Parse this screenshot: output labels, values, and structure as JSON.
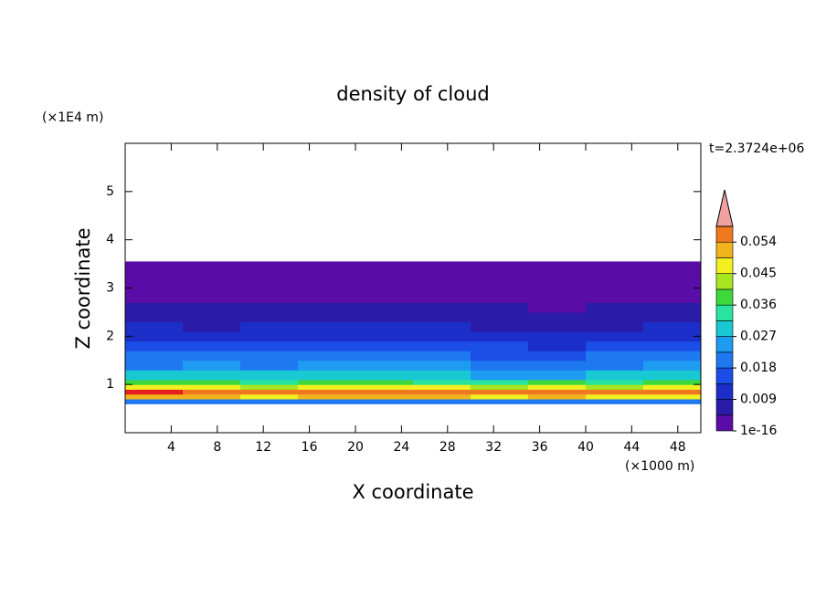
{
  "chart_data": {
    "type": "contour",
    "title": "density of cloud",
    "x_label": "X coordinate",
    "y_label": "Z coordinate",
    "x_unit": "(×1000 m)",
    "y_unit": "(×1E4 m)",
    "time_label": "t=2.3724e+06",
    "xlim": [
      0,
      50
    ],
    "ylim": [
      0,
      6
    ],
    "xticks": [
      4,
      8,
      12,
      16,
      20,
      24,
      28,
      32,
      36,
      40,
      44,
      48
    ],
    "yticks": [
      1,
      2,
      3,
      4,
      5
    ],
    "xbins": [
      0,
      5,
      10,
      15,
      20,
      25,
      30,
      35,
      40,
      45,
      50
    ],
    "zbins": [
      0.6,
      0.7,
      0.8,
      0.9,
      1.0,
      1.1,
      1.3,
      1.5,
      1.7,
      1.9,
      2.1,
      2.3,
      2.5,
      2.7,
      2.9,
      3.2,
      3.55
    ],
    "values": [
      [
        0.02,
        0.022,
        0.02,
        0.018,
        0.021,
        0.02,
        0.019,
        0.02,
        0.022,
        0.02
      ],
      [
        0.05,
        0.052,
        0.049,
        0.05,
        0.051,
        0.05,
        0.048,
        0.05,
        0.049,
        0.047
      ],
      [
        0.06,
        0.056,
        0.055,
        0.057,
        0.056,
        0.055,
        0.056,
        0.054,
        0.055,
        0.056
      ],
      [
        0.046,
        0.045,
        0.044,
        0.047,
        0.045,
        0.046,
        0.044,
        0.045,
        0.043,
        0.046
      ],
      [
        0.038,
        0.036,
        0.035,
        0.037,
        0.036,
        0.035,
        0.034,
        0.036,
        0.035,
        0.037
      ],
      [
        0.028,
        0.027,
        0.03,
        0.028,
        0.029,
        0.027,
        0.026,
        0.025,
        0.027,
        0.028
      ],
      [
        0.022,
        0.024,
        0.022,
        0.025,
        0.026,
        0.023,
        0.021,
        0.02,
        0.022,
        0.023
      ],
      [
        0.018,
        0.019,
        0.02,
        0.021,
        0.02,
        0.018,
        0.017,
        0.016,
        0.018,
        0.019
      ],
      [
        0.015,
        0.014,
        0.016,
        0.017,
        0.016,
        0.015,
        0.014,
        0.013,
        0.014,
        0.015
      ],
      [
        0.012,
        0.011,
        0.012,
        0.013,
        0.012,
        0.011,
        0.011,
        0.01,
        0.011,
        0.012
      ],
      [
        0.009,
        0.008,
        0.009,
        0.01,
        0.01,
        0.009,
        0.008,
        0.008,
        0.008,
        0.009
      ],
      [
        0.007,
        0.006,
        0.007,
        0.007,
        0.007,
        0.006,
        0.006,
        0.006,
        0.006,
        0.007
      ],
      [
        0.005,
        0.005,
        0.005,
        0.006,
        0.005,
        0.005,
        0.005,
        0.004,
        0.005,
        0.005
      ],
      [
        0.004,
        0.004,
        0.004,
        0.004,
        0.004,
        0.004,
        0.003,
        0.003,
        0.004,
        0.004
      ],
      [
        0.003,
        0.002,
        0.002,
        0.003,
        0.003,
        0.002,
        0.002,
        0.002,
        0.002,
        0.003
      ],
      [
        0.001,
        0.001,
        0.001,
        0.001,
        0.001,
        0.001,
        0.001,
        0.001,
        0.001,
        0.001
      ]
    ],
    "levels": [
      1e-16,
      0.0045,
      0.009,
      0.0135,
      0.018,
      0.0225,
      0.027,
      0.0315,
      0.036,
      0.0405,
      0.045,
      0.0495,
      0.054,
      0.0585
    ],
    "colors": [
      "#5a0ca6",
      "#2a1ca8",
      "#1c2ec8",
      "#1a4ee6",
      "#1e78f0",
      "#1e9cf2",
      "#18c8d2",
      "#28e4a0",
      "#3cd83c",
      "#a8e620",
      "#f2f020",
      "#f2b41e",
      "#f0781e",
      "#e61e1e",
      "#f0a0a0"
    ],
    "colorbar_ticks": [
      {
        "value": 1e-16,
        "label": "1e-16"
      },
      0.009,
      0.018,
      0.027,
      0.036,
      0.045,
      0.054
    ]
  }
}
